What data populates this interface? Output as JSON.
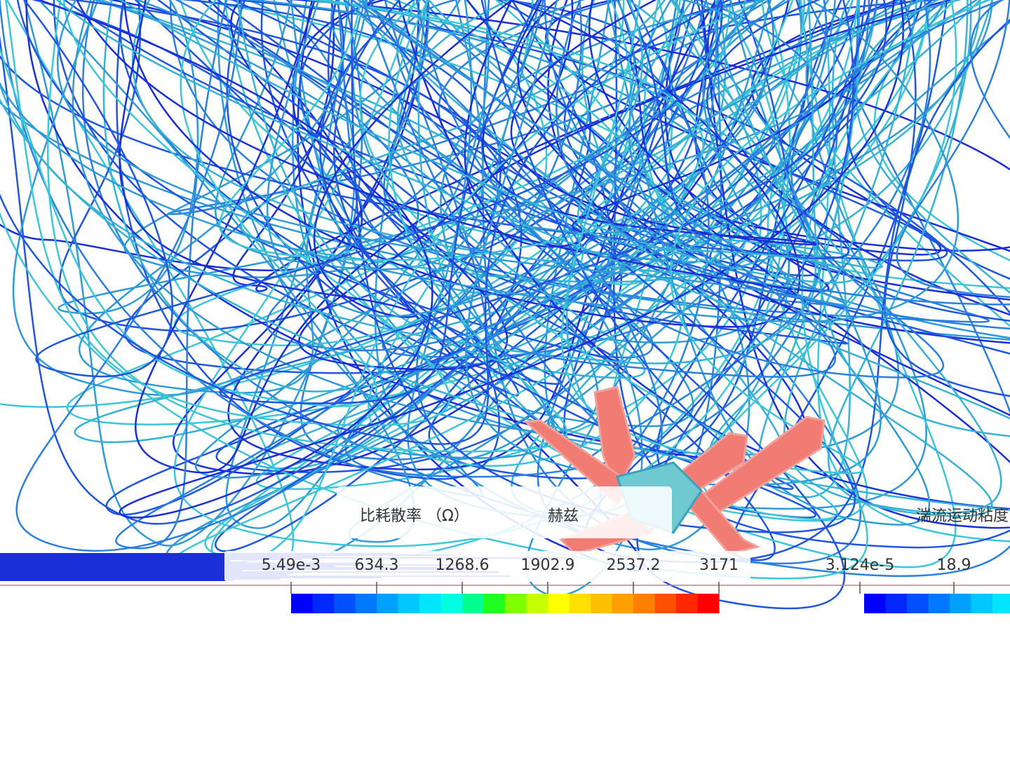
{
  "legend_left": {
    "title": "比耗散率 （Ω）",
    "unit": "赫兹",
    "ticks": [
      "5.49e-3",
      "634.3",
      "1268.6",
      "1902.9",
      "2537.2",
      "3171"
    ]
  },
  "legend_right": {
    "title": "湍流运动粘度",
    "ticks": [
      "3.124e-5",
      "18.9"
    ]
  }
}
